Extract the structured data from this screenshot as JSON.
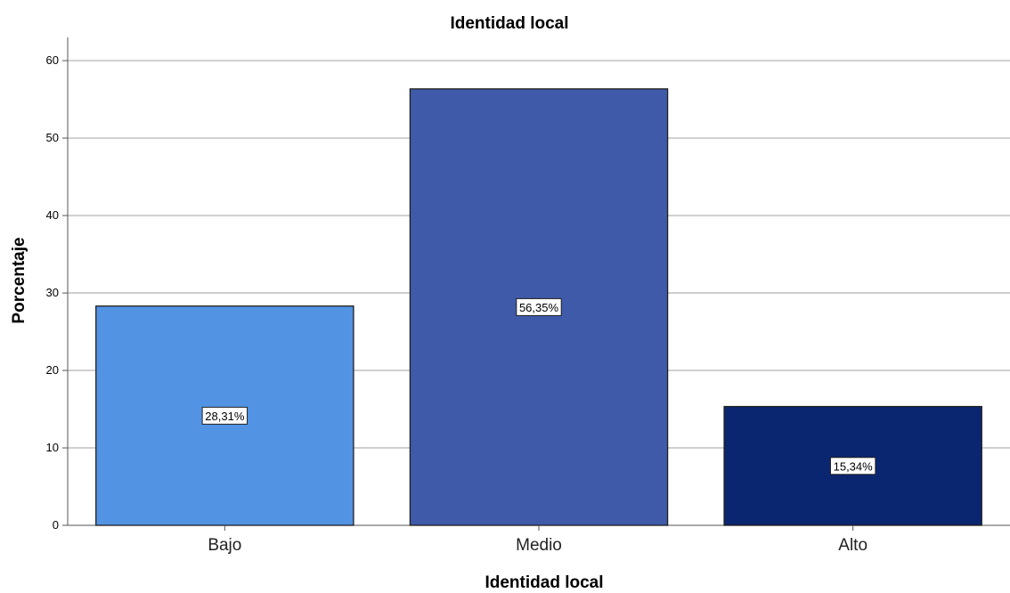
{
  "chart_data": {
    "type": "bar",
    "title": "Identidad local",
    "xlabel": "Identidad local",
    "ylabel": "Porcentaje",
    "categories": [
      "Bajo",
      "Medio",
      "Alto"
    ],
    "values": [
      28.31,
      56.35,
      15.34
    ],
    "data_labels": [
      "28,31%",
      "56,35%",
      "15,34%"
    ],
    "colors": [
      "#5393E3",
      "#3E5AA8",
      "#0B2670"
    ],
    "ylim": [
      0,
      63
    ],
    "yticks": [
      0,
      10,
      20,
      30,
      40,
      50,
      60
    ],
    "grid": true
  }
}
